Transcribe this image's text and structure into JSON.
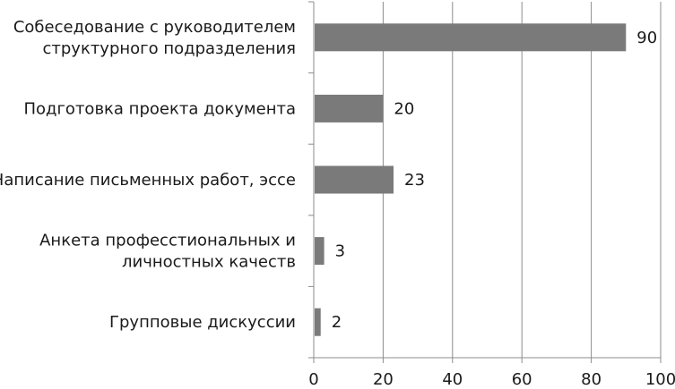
{
  "chart_data": {
    "type": "bar",
    "orientation": "horizontal",
    "title": "",
    "xlabel": "",
    "ylabel": "",
    "categories": [
      [
        "Собеседование с руководителем",
        "структурного подразделения"
      ],
      [
        "Подготовка проекта документа"
      ],
      [
        "Написание письменных работ, эссе"
      ],
      [
        "Анкета професстиональных и",
        "личностных качеств"
      ],
      [
        "Групповые дискуссии"
      ]
    ],
    "values": [
      90,
      20,
      23,
      3,
      2
    ],
    "xlim": [
      0,
      100
    ],
    "xticks": [
      0,
      20,
      40,
      60,
      80,
      100
    ],
    "grid": "vertical",
    "bar_color": "#7a7a7a",
    "grid_color": "#8c8c8c",
    "axis_color": "#8c8c8c"
  }
}
